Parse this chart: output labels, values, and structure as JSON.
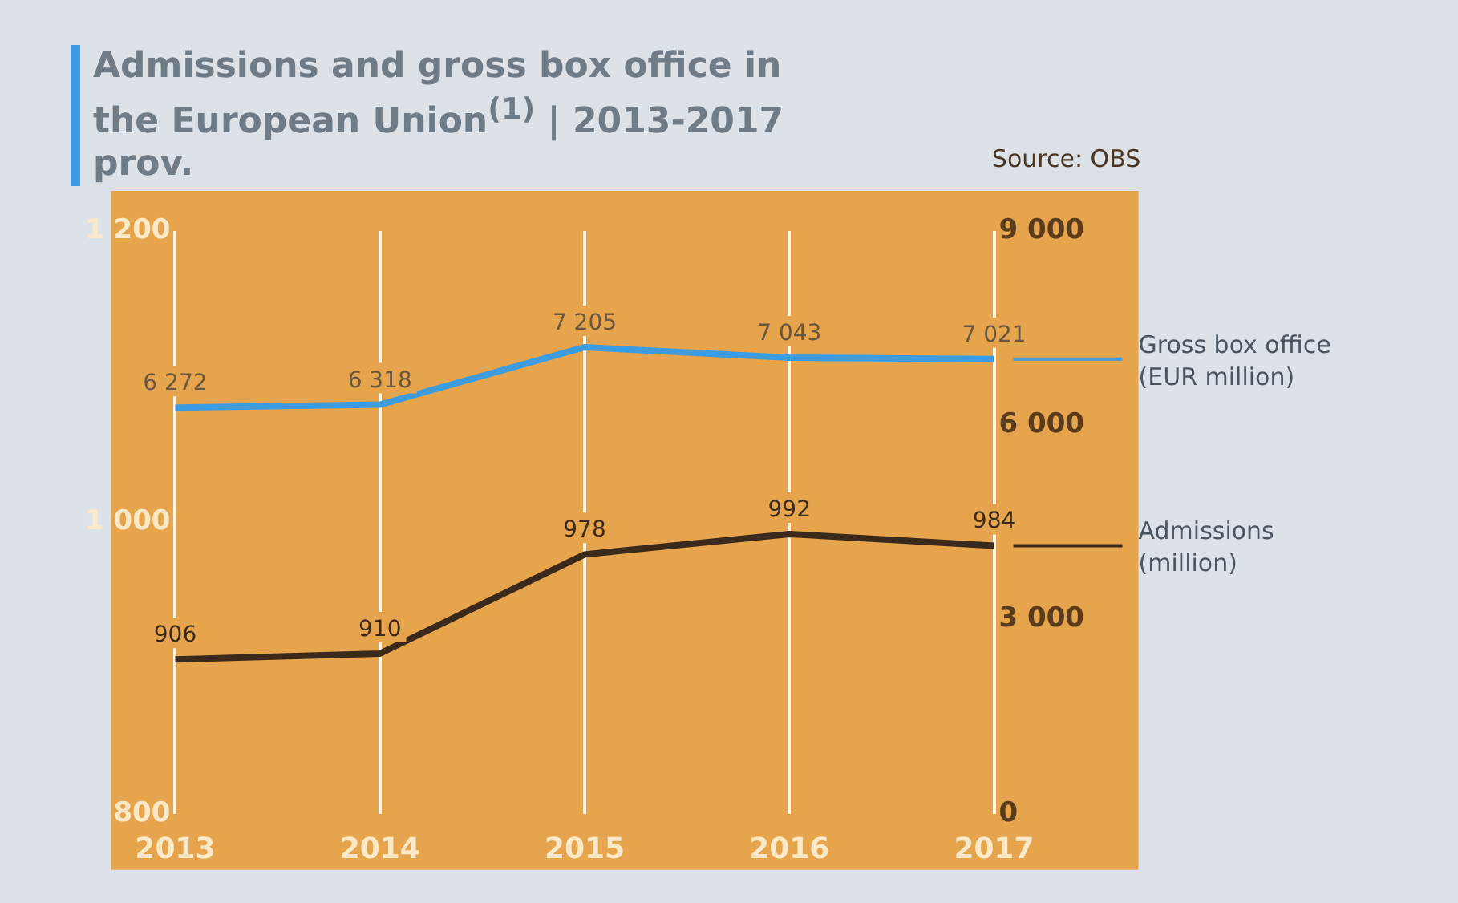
{
  "chart_data": {
    "type": "line",
    "title": "Admissions and gross box office in the European Union$^{(1)}$ | 2013-2017 prov.",
    "categories": [
      "2013",
      "2014",
      "2015",
      "2016",
      "2017"
    ],
    "series": [
      {
        "name": "Gross box office (EUR million)",
        "color": "#3d9be0",
        "axis": "y2",
        "values": [
          6272,
          6318,
          7205,
          7043,
          7021
        ],
        "value_labels": [
          "6 272",
          "6 318",
          "7 205",
          "7 043",
          "7 021"
        ]
      },
      {
        "name": "Admissions (million)",
        "color": "#3b2a1c",
        "values": [
          906,
          910,
          978,
          992,
          984
        ],
        "value_labels": [
          "906",
          "910",
          "978",
          "992",
          "984"
        ]
      }
    ],
    "ylim": [
      800,
      1200
    ],
    "yticks": [
      800,
      {
        "value": 1000,
        "label": "1 000"
      },
      {
        "value": 1200,
        "label": "1 200"
      }
    ],
    "y2lim": [
      0,
      9000
    ],
    "y2ticks": [
      0,
      {
        "value": 3000,
        "label": "3 000"
      },
      {
        "value": 6000,
        "label": "6 000"
      },
      {
        "value": 9000,
        "label": "9 000"
      }
    ],
    "grid": "x",
    "legend": "right",
    "marker": "none",
    "line_style": "solid",
    "annotations": [
      "Source: OBS"
    ]
  }
}
